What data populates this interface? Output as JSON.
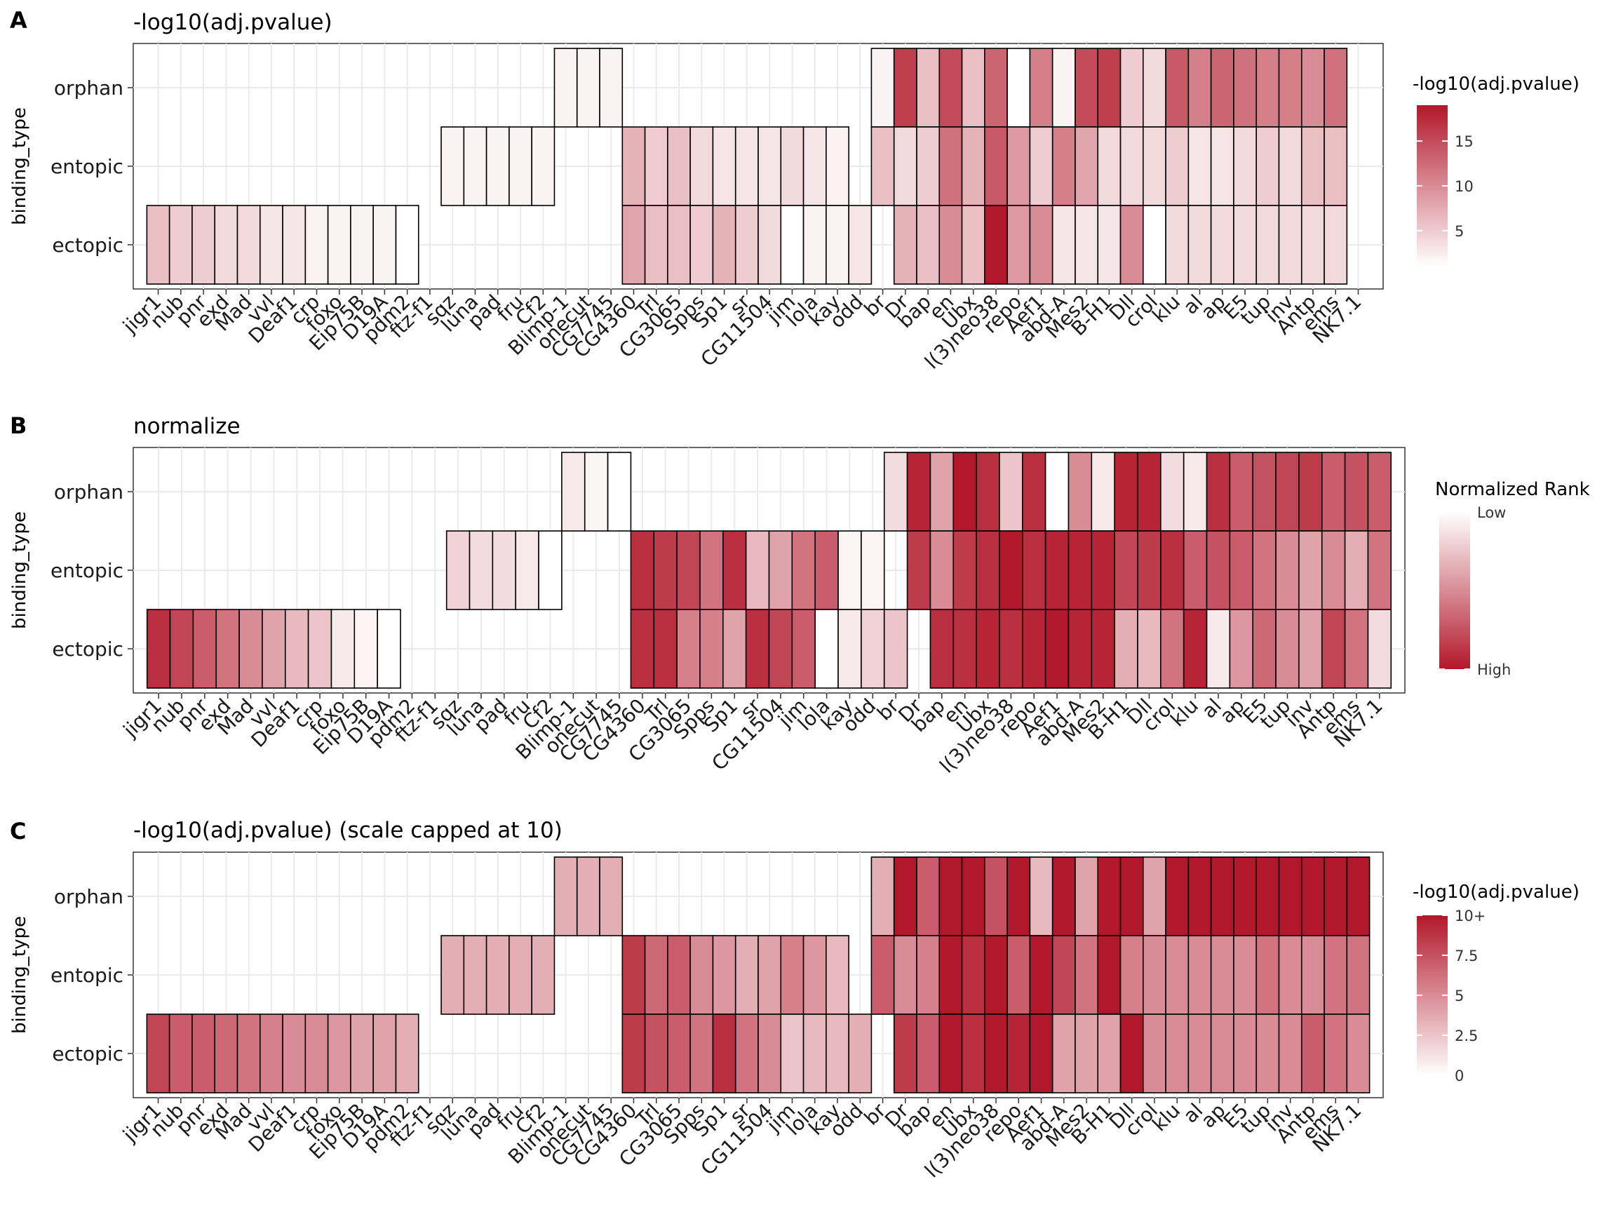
{
  "figure": {
    "panel_letters": [
      "A",
      "B",
      "C"
    ]
  },
  "chart_data": [
    {
      "type": "heatmap",
      "panel": "A",
      "title": "-log10(adj.pvalue)",
      "xlabel": "",
      "ylabel": "binding_type",
      "y_categories": [
        "orphan",
        "entopic",
        "ectopic"
      ],
      "x_categories": [
        "jigr1",
        "nub",
        "pnr",
        "exd",
        "Mad",
        "vvl",
        "Deaf1",
        "crp",
        "foxo",
        "Eip75B",
        "D19A",
        "pdm2",
        "ftz-f1",
        "sqz",
        "luna",
        "pad",
        "fru",
        "Cf2",
        "Blimp-1",
        "onecut",
        "CG7745",
        "CG4360",
        "Trl",
        "CG3065",
        "Spps",
        "Sp1",
        "sr",
        "CG11504",
        "jim",
        "lola",
        "kay",
        "odd",
        "br",
        "Dr",
        "bap",
        "en",
        "Ubx",
        "l(3)neo38",
        "repo",
        "Aef1",
        "abd-A",
        "Mes2",
        "B-H1",
        "Dll",
        "crol",
        "klu",
        "al",
        "ap",
        "E5",
        "tup",
        "inv",
        "Antp",
        "ems",
        "NK7.1"
      ],
      "values": {
        "orphan": [
          null,
          null,
          null,
          null,
          null,
          null,
          null,
          null,
          null,
          null,
          null,
          null,
          null,
          null,
          null,
          null,
          null,
          null,
          2,
          2,
          2,
          null,
          null,
          null,
          null,
          null,
          null,
          null,
          null,
          null,
          null,
          null,
          2,
          16,
          6,
          15,
          6,
          13,
          1,
          11,
          2,
          15,
          16,
          5,
          4,
          14,
          11,
          13,
          12,
          11,
          11,
          10,
          12
        ],
        "entopic": [
          null,
          null,
          null,
          null,
          null,
          null,
          null,
          null,
          null,
          null,
          null,
          null,
          null,
          2,
          2,
          2,
          2,
          2,
          null,
          null,
          null,
          7,
          5,
          6,
          4,
          3,
          3,
          3,
          4,
          3,
          2,
          null,
          6,
          4,
          5,
          12,
          7,
          14,
          9,
          5,
          11,
          8,
          4,
          4,
          4,
          5,
          3,
          3,
          4,
          5,
          4,
          6,
          6
        ],
        "ectopic": [
          6,
          5,
          5,
          4,
          4,
          3,
          3,
          2,
          2,
          2,
          2,
          1,
          null,
          null,
          null,
          null,
          null,
          null,
          null,
          null,
          null,
          8,
          6,
          6,
          5,
          7,
          5,
          4,
          1,
          2,
          2,
          3,
          null,
          7,
          6,
          10,
          6,
          19,
          9,
          10,
          3,
          3,
          3,
          10,
          1,
          4,
          4,
          4,
          4,
          4,
          4,
          4,
          4
        ]
      },
      "legend": {
        "title": "-log10(adj.pvalue)",
        "ticks": [
          {
            "value": 5,
            "label": "5"
          },
          {
            "value": 10,
            "label": "10"
          },
          {
            "value": 15,
            "label": "15"
          }
        ],
        "min": 1,
        "max": 19,
        "placement": "right"
      },
      "colors": {
        "low": "#ffffff",
        "high": "#b2182b"
      }
    },
    {
      "type": "heatmap",
      "panel": "B",
      "title": "normalize",
      "xlabel": "",
      "ylabel": "binding_type",
      "y_categories": [
        "orphan",
        "entopic",
        "ectopic"
      ],
      "x_categories": [
        "jigr1",
        "nub",
        "pnr",
        "exd",
        "Mad",
        "vvl",
        "Deaf1",
        "crp",
        "foxo",
        "Eip75B",
        "D19A",
        "pdm2",
        "ftz-f1",
        "sqz",
        "luna",
        "pad",
        "fru",
        "Cf2",
        "Blimp-1",
        "onecut",
        "CG7745",
        "CG4360",
        "Trl",
        "CG3065",
        "Spps",
        "Sp1",
        "sr",
        "CG11504",
        "jim",
        "lola",
        "kay",
        "odd",
        "br",
        "Dr",
        "bap",
        "en",
        "Ubx",
        "l(3)neo38",
        "repo",
        "Aef1",
        "abd-A",
        "Mes2",
        "B-H1",
        "Dll",
        "crol",
        "klu",
        "al",
        "ap",
        "E5",
        "tup",
        "inv",
        "Antp",
        "ems",
        "NK7.1"
      ],
      "values": {
        "orphan": [
          null,
          null,
          null,
          null,
          null,
          null,
          null,
          null,
          null,
          null,
          null,
          null,
          null,
          null,
          null,
          null,
          null,
          null,
          0.1,
          0.05,
          0,
          null,
          null,
          null,
          null,
          null,
          null,
          null,
          null,
          null,
          null,
          null,
          0.15,
          0.95,
          0.4,
          1,
          0.9,
          0.25,
          0.9,
          0,
          0.5,
          0.1,
          0.95,
          0.95,
          0.15,
          0.1,
          0.9,
          0.7,
          0.75,
          0.8,
          0.85,
          0.7,
          0.75,
          0.7
        ],
        "entopic": [
          null,
          null,
          null,
          null,
          null,
          null,
          null,
          null,
          null,
          null,
          null,
          null,
          null,
          0.2,
          0.15,
          0.15,
          0.1,
          0,
          null,
          null,
          null,
          0.9,
          0.85,
          0.8,
          0.6,
          0.9,
          0.3,
          0.4,
          0.6,
          0.7,
          0.05,
          0.05,
          null,
          0.85,
          0.5,
          0.85,
          0.9,
          1,
          0.9,
          0.95,
          0.95,
          0.95,
          0.8,
          0.85,
          0.9,
          0.7,
          0.75,
          0.7,
          0.6,
          0.5,
          0.4,
          0.5,
          0.35,
          0.6
        ],
        "ectopic": [
          0.9,
          0.8,
          0.7,
          0.6,
          0.5,
          0.4,
          0.3,
          0.25,
          0.1,
          0.05,
          0,
          null,
          null,
          null,
          null,
          null,
          null,
          null,
          null,
          null,
          null,
          0.9,
          0.9,
          0.55,
          0.55,
          0.4,
          0.9,
          0.8,
          0.7,
          0,
          0.1,
          0.2,
          0.25,
          null,
          0.9,
          0.9,
          0.95,
          0.9,
          0.95,
          1,
          0.95,
          0.95,
          0.35,
          0.3,
          0.6,
          0.95,
          0.1,
          0.45,
          0.65,
          0.5,
          0.4,
          0.8,
          0.6,
          0.15
        ]
      },
      "legend": {
        "title": "Normalized Rank",
        "ticks": [
          {
            "value": 0,
            "label": "Low"
          },
          {
            "value": 1,
            "label": "High"
          }
        ],
        "min": 0,
        "max": 1,
        "placement": "right"
      },
      "colors": {
        "low": "#ffffff",
        "high": "#b2182b"
      }
    },
    {
      "type": "heatmap",
      "panel": "C",
      "title": "-log10(adj.pvalue) (scale capped at 10)",
      "xlabel": "",
      "ylabel": "binding_type",
      "y_categories": [
        "orphan",
        "entopic",
        "ectopic"
      ],
      "x_categories": [
        "jigr1",
        "nub",
        "pnr",
        "exd",
        "Mad",
        "vvl",
        "Deaf1",
        "crp",
        "foxo",
        "Eip75B",
        "D19A",
        "pdm2",
        "ftz-f1",
        "sqz",
        "luna",
        "pad",
        "fru",
        "Cf2",
        "Blimp-1",
        "onecut",
        "CG7745",
        "CG4360",
        "Trl",
        "CG3065",
        "Spps",
        "Sp1",
        "sr",
        "CG11504",
        "jim",
        "lola",
        "kay",
        "odd",
        "br",
        "Dr",
        "bap",
        "en",
        "Ubx",
        "l(3)neo38",
        "repo",
        "Aef1",
        "abd-A",
        "Mes2",
        "B-H1",
        "Dll",
        "crol",
        "klu",
        "al",
        "ap",
        "E5",
        "tup",
        "inv",
        "Antp",
        "ems",
        "NK7.1"
      ],
      "values": {
        "orphan": [
          null,
          null,
          null,
          null,
          null,
          null,
          null,
          null,
          null,
          null,
          null,
          null,
          null,
          null,
          null,
          null,
          null,
          null,
          3.5,
          3.5,
          3.5,
          null,
          null,
          null,
          null,
          null,
          null,
          null,
          null,
          null,
          null,
          null,
          3.5,
          10,
          7,
          10,
          10,
          7.5,
          10,
          3,
          10,
          4,
          10,
          10,
          4,
          10,
          10,
          10,
          10,
          10,
          10,
          10,
          10,
          10
        ],
        "entopic": [
          null,
          null,
          null,
          null,
          null,
          null,
          null,
          null,
          null,
          null,
          null,
          null,
          null,
          3.5,
          3.5,
          3.5,
          3.5,
          3.5,
          null,
          null,
          null,
          8.5,
          6.5,
          7,
          5,
          4.5,
          3.5,
          4,
          5.5,
          4.5,
          3,
          null,
          7,
          5,
          5.5,
          10,
          9,
          10,
          7,
          10,
          8,
          6,
          10,
          5.5,
          5,
          5,
          5,
          5,
          5,
          6,
          5,
          5,
          6,
          6
        ],
        "ectopic": [
          8,
          7,
          7,
          6.5,
          6,
          5.5,
          5,
          5,
          4.5,
          4,
          4,
          3.5,
          null,
          null,
          null,
          null,
          null,
          null,
          null,
          null,
          null,
          8.5,
          7.5,
          7,
          6,
          9,
          6,
          5,
          2.5,
          3,
          3,
          3.5,
          null,
          8.5,
          7,
          10,
          9,
          10,
          9.5,
          10,
          4,
          4,
          4,
          10,
          5,
          5,
          5,
          5,
          5,
          5,
          5,
          7,
          6,
          5
        ]
      },
      "legend": {
        "title": "-log10(adj.pvalue)",
        "ticks": [
          {
            "value": 0,
            "label": "0"
          },
          {
            "value": 2.5,
            "label": "2.5"
          },
          {
            "value": 5,
            "label": "5"
          },
          {
            "value": 7.5,
            "label": "7.5"
          },
          {
            "value": 10,
            "label": "10+"
          }
        ],
        "min": 0,
        "max": 10,
        "placement": "right"
      },
      "colors": {
        "low": "#ffffff",
        "high": "#b2182b"
      }
    }
  ]
}
